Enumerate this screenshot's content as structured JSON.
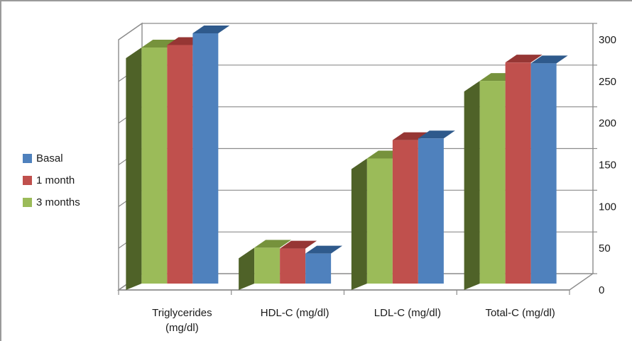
{
  "chart_data": {
    "type": "bar",
    "categories": [
      "Triglycerides\n(mg/dl)",
      "HDL-C (mg/dl)",
      "LDL-C (mg/dl)",
      "Total-C (mg/dl)"
    ],
    "series": [
      {
        "name": "3 months",
        "values": [
          283,
          43,
          150,
          243
        ],
        "color": "#9bbb59",
        "side": "#4f6228",
        "top": "#76923c"
      },
      {
        "name": "1 month",
        "values": [
          286,
          42,
          172,
          265
        ],
        "color": "#c0504d",
        "side": "#7f1e1c",
        "top": "#963634"
      },
      {
        "name": "Basal",
        "values": [
          300,
          36,
          174,
          264
        ],
        "color": "#4f81bd",
        "side": "#1f3f66",
        "top": "#2f5a8c"
      }
    ],
    "legend": {
      "placement": "left",
      "order": [
        "Basal",
        "1 month",
        "3 months"
      ]
    },
    "yticks": [
      0,
      50,
      100,
      150,
      200,
      250,
      300
    ],
    "ylim": [
      0,
      300
    ],
    "grid": true,
    "axis_position": "right",
    "style": "3d-clustered"
  }
}
